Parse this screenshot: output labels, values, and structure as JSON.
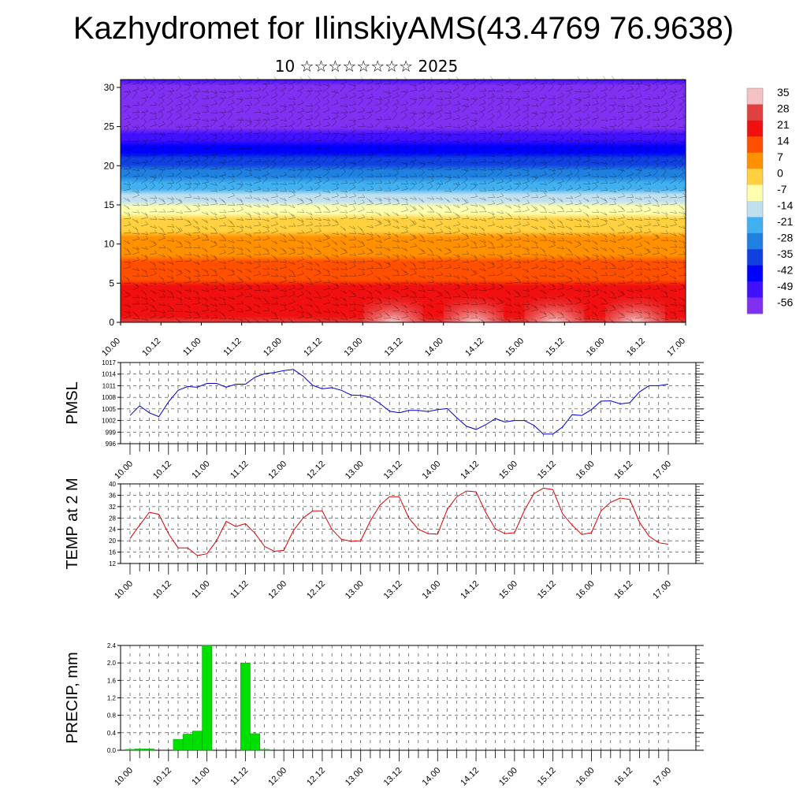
{
  "page": {
    "title": "Kazhydromet for IlinskiyAMS(43.4769 76.9638)",
    "subtitle": "10 ☆☆☆☆☆☆☆☆ 2025"
  },
  "colors": {
    "pmsl_line": "#0000cc",
    "temp_line": "#dd0000",
    "precip_bar": "#00e000",
    "precip_bar_edge": "#00a000"
  },
  "chart_data": [
    {
      "type": "heatmap",
      "title": "",
      "xlabel": "",
      "ylabel": "",
      "x_ticks": [
        "10.00",
        "10.12",
        "11.00",
        "11.12",
        "12.00",
        "12.12",
        "13.00",
        "13.12",
        "14.00",
        "14.12",
        "15.00",
        "15.12",
        "16.00",
        "16.12",
        "17.00"
      ],
      "ylim": [
        0,
        31
      ],
      "y_ticks": [
        0,
        5,
        10,
        15,
        20,
        25,
        30
      ],
      "colorbar_labels": [
        35,
        28,
        21,
        14,
        7,
        0,
        -7,
        -14,
        -21,
        -28,
        -35,
        -42,
        -49,
        -56
      ],
      "color_stops": [
        "#f4c2c2",
        "#e04040",
        "#f01010",
        "#ff5000",
        "#ff9000",
        "#ffd040",
        "#ffffb0",
        "#c0e0f0",
        "#40b0f0",
        "#2080e0",
        "#1040e0",
        "#0000ff",
        "#4010ff",
        "#8030f0"
      ],
      "temperature_by_height": {
        "heights": [
          0,
          5,
          10,
          15,
          20,
          25,
          31
        ],
        "values": [
          22,
          14,
          4,
          -12,
          -36,
          -60,
          -56
        ]
      },
      "overlay": "wind barbs"
    },
    {
      "type": "line",
      "ylabel": "PMSL",
      "ylim": [
        996,
        1017
      ],
      "y_ticks": [
        996,
        999,
        1002,
        1005,
        1008,
        1011,
        1014,
        1017
      ],
      "x_ticks": [
        "10.00",
        "10.12",
        "11.00",
        "11.12",
        "12.00",
        "12.12",
        "13.00",
        "13.12",
        "14.00",
        "14.12",
        "15.00",
        "15.12",
        "16.00",
        "16.12",
        "17.00"
      ],
      "x": [
        0,
        3,
        6,
        9,
        12,
        15,
        18,
        21,
        24,
        27,
        30,
        33,
        36,
        39,
        42,
        45,
        48,
        51,
        54,
        57,
        60,
        63,
        66,
        69,
        72,
        75,
        78,
        81,
        84,
        87,
        90,
        93,
        96,
        99,
        102,
        105,
        108,
        111,
        114,
        117,
        120,
        123,
        126,
        129,
        132,
        135,
        138,
        141,
        144,
        147,
        150,
        153,
        156,
        159,
        162,
        165,
        168
      ],
      "values": [
        1003.3,
        1005.8,
        1004.0,
        1003.0,
        1006.8,
        1009.8,
        1010.8,
        1010.6,
        1011.6,
        1011.6,
        1010.6,
        1011.4,
        1011.4,
        1013.2,
        1014.1,
        1014.4,
        1014.9,
        1015.2,
        1013.5,
        1011.1,
        1010.2,
        1010.5,
        1009.8,
        1008.6,
        1008.5,
        1008.0,
        1006.4,
        1004.4,
        1004.0,
        1004.6,
        1004.6,
        1004.3,
        1004.8,
        1005.1,
        1002.7,
        1000.5,
        999.7,
        1000.9,
        1002.5,
        1001.6,
        1002.0,
        1002.0,
        1000.8,
        998.5,
        998.5,
        1000.3,
        1003.5,
        1003.3,
        1004.8,
        1007.0,
        1007.1,
        1006.3,
        1006.6,
        1009.4,
        1011.0,
        1011.0,
        1011.4
      ]
    },
    {
      "type": "line",
      "ylabel": "TEMP at 2 M",
      "ylim": [
        12,
        40
      ],
      "y_ticks": [
        12,
        16,
        20,
        24,
        28,
        32,
        36,
        40
      ],
      "x_ticks": [
        "10.00",
        "10.12",
        "11.00",
        "11.12",
        "12.00",
        "12.12",
        "13.00",
        "13.12",
        "14.00",
        "14.12",
        "15.00",
        "15.12",
        "16.00",
        "16.12",
        "17.00"
      ],
      "x": [
        0,
        3,
        6,
        9,
        12,
        15,
        18,
        21,
        24,
        27,
        30,
        33,
        36,
        39,
        42,
        45,
        48,
        51,
        54,
        57,
        60,
        63,
        66,
        69,
        72,
        75,
        78,
        81,
        84,
        87,
        90,
        93,
        96,
        99,
        102,
        105,
        108,
        111,
        114,
        117,
        120,
        123,
        126,
        129,
        132,
        135,
        138,
        141,
        144,
        147,
        150,
        153,
        156,
        159,
        162,
        165,
        168
      ],
      "values": [
        20.8,
        25.5,
        30.0,
        29.3,
        22.5,
        17.5,
        17.5,
        14.8,
        15.4,
        20.0,
        26.8,
        25.0,
        26.0,
        22.6,
        18.0,
        16.3,
        16.6,
        23.6,
        28.0,
        30.5,
        30.5,
        24.0,
        20.5,
        19.8,
        20.0,
        27.0,
        32.5,
        35.5,
        35.5,
        28.0,
        24.0,
        22.5,
        22.3,
        31.0,
        35.5,
        37.5,
        37.2,
        30.0,
        24.2,
        22.5,
        22.8,
        30.5,
        36.5,
        38.5,
        38.0,
        29.5,
        25.5,
        22.2,
        22.8,
        30.5,
        33.5,
        35.0,
        34.5,
        26.5,
        21.6,
        19.3,
        18.8
      ]
    },
    {
      "type": "bar",
      "ylabel": "PRECIP, mm",
      "ylim": [
        0,
        2.4
      ],
      "y_ticks": [
        0.0,
        0.4,
        0.8,
        1.2,
        1.6,
        2.0,
        2.4
      ],
      "y_tick_labels": [
        "0.0",
        "0.4",
        "0.8",
        "1.2",
        "1.6",
        "2.0",
        "2.4"
      ],
      "x_ticks": [
        "10.00",
        "10.12",
        "11.00",
        "11.12",
        "12.00",
        "12.12",
        "13.00",
        "13.12",
        "14.00",
        "14.12",
        "15.00",
        "15.12",
        "16.00",
        "16.12",
        "17.00"
      ],
      "bar_width_hours": 3,
      "x": [
        0,
        3,
        6,
        9,
        12,
        15,
        18,
        21,
        24,
        27,
        30,
        33,
        36
      ],
      "values": [
        0.02,
        0.03,
        0.03,
        0.0,
        0.0,
        0.25,
        0.37,
        0.44,
        2.4,
        0.0,
        0.0,
        0.0,
        2.0
      ]
    }
  ],
  "precip_extra": {
    "x": [
      39,
      42
    ],
    "values": [
      0.38,
      0.02
    ]
  }
}
